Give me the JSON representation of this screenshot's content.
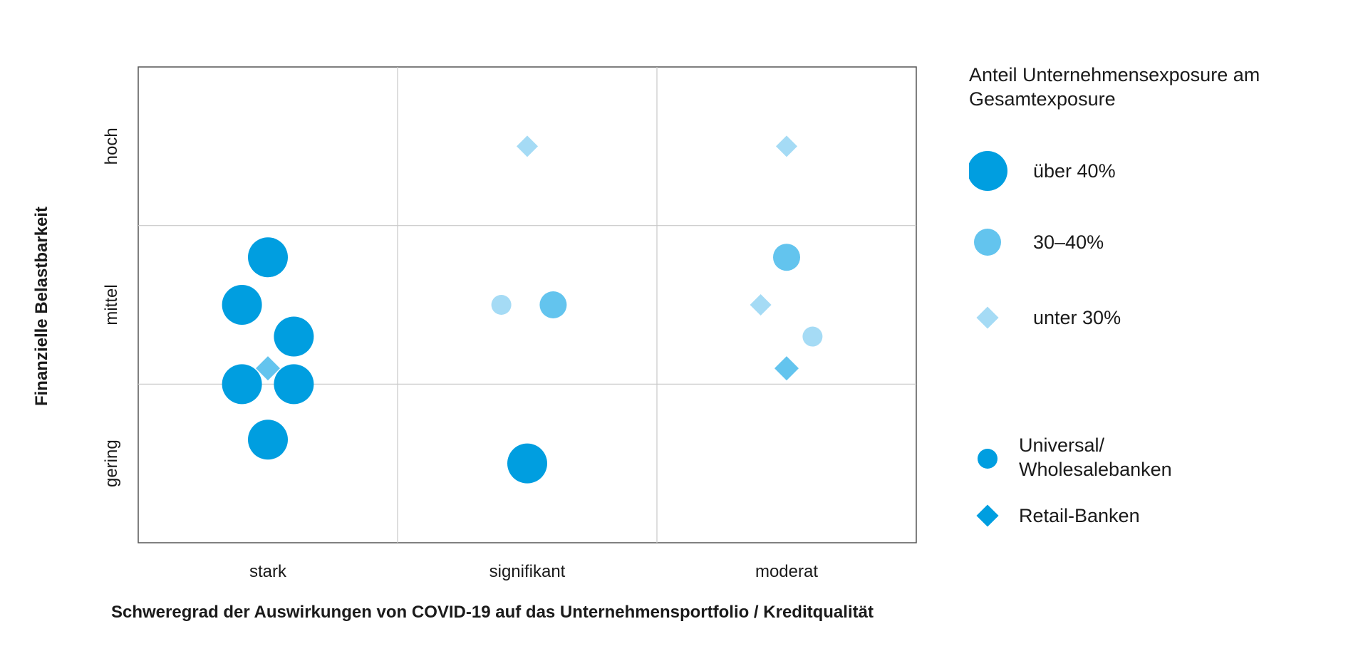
{
  "chart_data": {
    "type": "scatter",
    "x_categories": [
      "stark",
      "signifikant",
      "moderat"
    ],
    "y_categories": [
      "gering",
      "mittel",
      "hoch"
    ],
    "xlabel": "Schweregrad der Auswirkungen von COVID-19 auf das Unternehmensportfolio / Kreditqualität",
    "ylabel": "Finanzielle Belastbarkeit",
    "grid": true,
    "legend_position": "right",
    "series": [
      {
        "name": "Universal/ Wholesalebanken",
        "marker": "circle",
        "points": [
          {
            "x": "stark",
            "y": "mittel",
            "exposure": "über 40%"
          },
          {
            "x": "stark",
            "y": "mittel",
            "exposure": "über 40%"
          },
          {
            "x": "stark",
            "y": "mittel",
            "exposure": "über 40%"
          },
          {
            "x": "stark",
            "y": "gering",
            "exposure": "über 40%"
          },
          {
            "x": "stark",
            "y": "gering",
            "exposure": "über 40%"
          },
          {
            "x": "stark",
            "y": "gering",
            "exposure": "über 40%"
          },
          {
            "x": "signifikant",
            "y": "mittel",
            "exposure": "unter 30%"
          },
          {
            "x": "signifikant",
            "y": "mittel",
            "exposure": "30–40%"
          },
          {
            "x": "signifikant",
            "y": "gering",
            "exposure": "über 40%"
          },
          {
            "x": "moderat",
            "y": "mittel",
            "exposure": "30–40%"
          },
          {
            "x": "moderat",
            "y": "mittel",
            "exposure": "unter 30%"
          }
        ]
      },
      {
        "name": "Retail-Banken",
        "marker": "diamond",
        "points": [
          {
            "x": "stark",
            "y": "mittel",
            "exposure": "30–40%"
          },
          {
            "x": "signifikant",
            "y": "hoch",
            "exposure": "unter 30%"
          },
          {
            "x": "moderat",
            "y": "hoch",
            "exposure": "unter 30%"
          },
          {
            "x": "moderat",
            "y": "mittel",
            "exposure": "unter 30%"
          },
          {
            "x": "moderat",
            "y": "mittel",
            "exposure": "30–40%"
          }
        ]
      }
    ]
  },
  "legend": {
    "size_title": "Anteil Unternehmensexposure am Gesamtexposure",
    "size_items": [
      {
        "label": "über 40%",
        "color": "#009ee0"
      },
      {
        "label": "30–40%",
        "color": "#63c4ee"
      },
      {
        "label": "unter 30%",
        "color": "#a5dbf5"
      }
    ],
    "shape_items": [
      {
        "label": "Universal/ Wholesalebanken",
        "shape": "circle"
      },
      {
        "label": "Retail-Banken",
        "shape": "diamond"
      }
    ]
  },
  "colors": {
    "strong": "#009ee0",
    "medium": "#63c4ee",
    "light": "#a5dbf5",
    "grid": "#c8c8c8",
    "frame": "#555555"
  }
}
